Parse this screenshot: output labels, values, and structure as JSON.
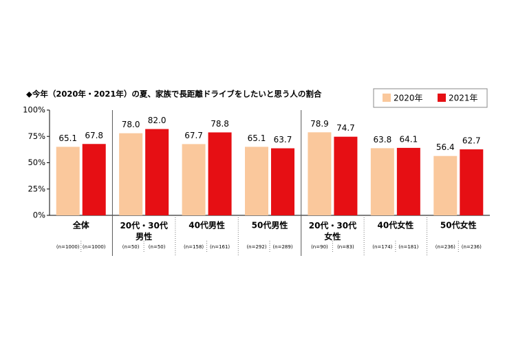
{
  "chart_data": {
    "type": "bar",
    "title": "◆今年（2020年・2021年）の夏、家族で長距離ドライブをしたいと思う人の割合",
    "categories": [
      "全体",
      "20代・30代\n男性",
      "40代男性",
      "50代男性",
      "20代・30代\n女性",
      "40代女性",
      "50代女性"
    ],
    "sample_sizes": [
      [
        "(n=1000)",
        "(n=1000)"
      ],
      [
        "(n=50)",
        "(n=50)"
      ],
      [
        "(n=158)",
        "(n=161)"
      ],
      [
        "(n=292)",
        "(n=289)"
      ],
      [
        "(n=90)",
        "(n=83)"
      ],
      [
        "(n=174)",
        "(n=181)"
      ],
      [
        "(n=236)",
        "(n=236)"
      ]
    ],
    "series": [
      {
        "name": "2020年",
        "color": "#fac89c",
        "values": [
          65.1,
          78.0,
          67.7,
          65.1,
          78.9,
          63.8,
          56.4
        ],
        "value_labels": [
          "65.1",
          "78.0",
          "67.7",
          "65.1",
          "78.9",
          "63.8",
          "56.4"
        ]
      },
      {
        "name": "2021年",
        "color": "#e60f14",
        "values": [
          67.8,
          82.0,
          78.8,
          63.7,
          74.7,
          64.1,
          62.7
        ],
        "value_labels": [
          "67.8",
          "82.0",
          "78.8",
          "63.7",
          "74.7",
          "64.1",
          "62.7"
        ]
      }
    ],
    "ylim": [
      0,
      100
    ],
    "yticks": [
      {
        "value": 0,
        "label": "0%"
      },
      {
        "value": 25,
        "label": "25%"
      },
      {
        "value": 50,
        "label": "50%"
      },
      {
        "value": 75,
        "label": "75%"
      },
      {
        "value": 100,
        "label": "100%"
      }
    ],
    "legend": "top-right"
  }
}
